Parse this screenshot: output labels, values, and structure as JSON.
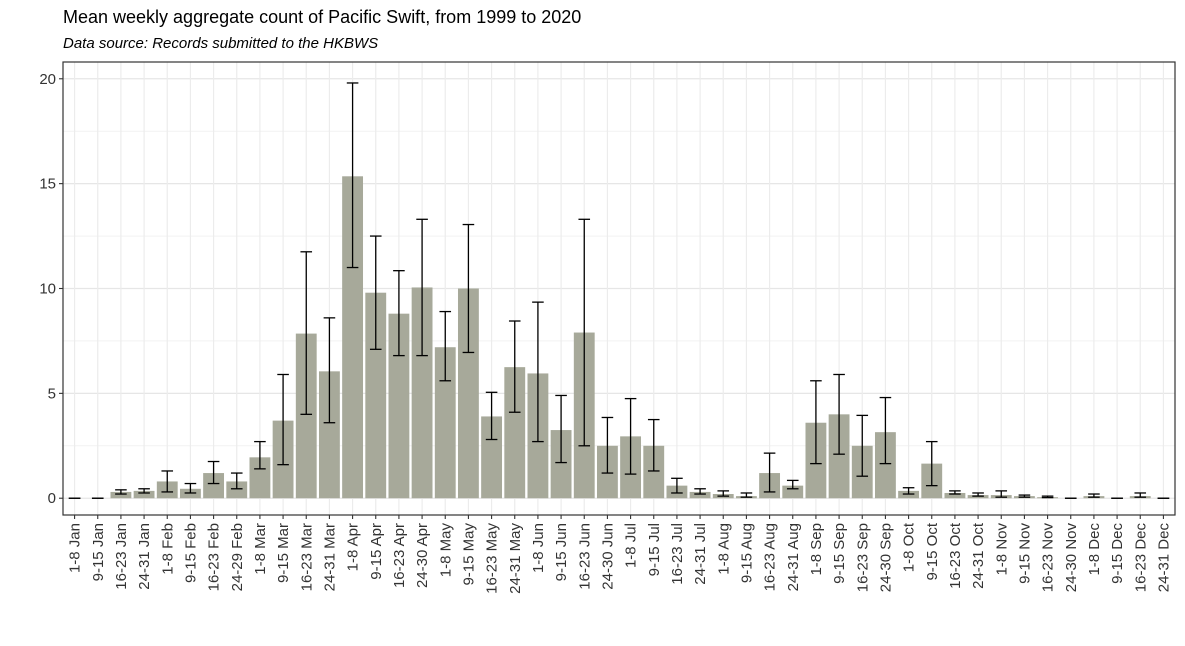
{
  "chart_data": {
    "type": "bar",
    "title": "Mean weekly aggregate count of Pacific Swift, from 1999 to 2020",
    "subtitle": "Data source: Records submitted to the HKBWS",
    "xlabel": "",
    "ylabel": "",
    "ylim": [
      -0.8,
      20.8
    ],
    "yticks": [
      0,
      5,
      10,
      15,
      20
    ],
    "grid": true,
    "bar_color": "#a7a99a",
    "error_bar_color": "#000000",
    "categories": [
      "1-8 Jan",
      "9-15 Jan",
      "16-23 Jan",
      "24-31 Jan",
      "1-8 Feb",
      "9-15 Feb",
      "16-23 Feb",
      "24-29 Feb",
      "1-8 Mar",
      "9-15 Mar",
      "16-23 Mar",
      "24-31 Mar",
      "1-8 Apr",
      "9-15 Apr",
      "16-23 Apr",
      "24-30 Apr",
      "1-8 May",
      "9-15 May",
      "16-23 May",
      "24-31 May",
      "1-8 Jun",
      "9-15 Jun",
      "16-23 Jun",
      "24-30 Jun",
      "1-8 Jul",
      "9-15 Jul",
      "16-23 Jul",
      "24-31 Jul",
      "1-8 Aug",
      "9-15 Aug",
      "16-23 Aug",
      "24-31 Aug",
      "1-8 Sep",
      "9-15 Sep",
      "16-23 Sep",
      "24-30 Sep",
      "1-8 Oct",
      "9-15 Oct",
      "16-23 Oct",
      "24-31 Oct",
      "1-8 Nov",
      "9-15 Nov",
      "16-23 Nov",
      "24-30 Nov",
      "1-8 Dec",
      "9-15 Dec",
      "16-23 Dec",
      "24-31 Dec"
    ],
    "values": [
      0,
      0,
      0.3,
      0.35,
      0.8,
      0.45,
      1.2,
      0.8,
      1.95,
      3.7,
      7.85,
      6.05,
      15.35,
      9.8,
      8.8,
      10.05,
      7.2,
      10.0,
      3.9,
      6.25,
      5.95,
      3.25,
      7.9,
      2.5,
      2.95,
      2.5,
      0.6,
      0.3,
      0.2,
      0.1,
      1.2,
      0.6,
      3.6,
      4.0,
      2.5,
      3.15,
      0.35,
      1.65,
      0.25,
      0.15,
      0.15,
      0.1,
      0.05,
      0,
      0.1,
      0,
      0.1,
      0
    ],
    "error_low": [
      0,
      0,
      0.2,
      0.25,
      0.3,
      0.25,
      0.7,
      0.45,
      1.4,
      1.6,
      4.0,
      3.6,
      11.0,
      7.1,
      6.8,
      6.8,
      5.6,
      6.95,
      2.8,
      4.1,
      2.7,
      1.7,
      2.5,
      1.2,
      1.15,
      1.3,
      0.25,
      0.2,
      0.1,
      0.05,
      0.3,
      0.45,
      1.65,
      2.1,
      1.05,
      1.65,
      0.2,
      0.6,
      0.2,
      0.1,
      0.05,
      0.05,
      0.03,
      0,
      0.05,
      0,
      0.05,
      0
    ],
    "error_high": [
      0,
      0,
      0.4,
      0.45,
      1.3,
      0.7,
      1.75,
      1.2,
      2.7,
      5.9,
      11.75,
      8.6,
      19.8,
      12.5,
      10.85,
      13.3,
      8.9,
      13.05,
      5.05,
      8.45,
      9.35,
      4.9,
      13.3,
      3.85,
      4.75,
      3.75,
      0.95,
      0.45,
      0.35,
      0.25,
      2.15,
      0.85,
      5.6,
      5.9,
      3.95,
      4.8,
      0.5,
      2.7,
      0.35,
      0.25,
      0.35,
      0.15,
      0.1,
      0,
      0.2,
      0,
      0.25,
      0
    ]
  }
}
